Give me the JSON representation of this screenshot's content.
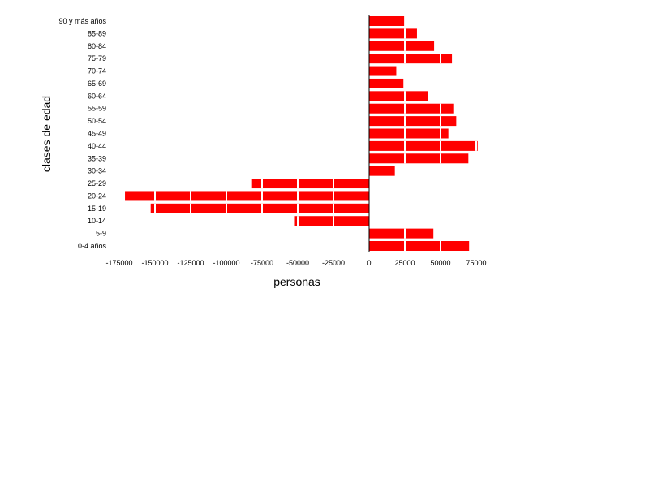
{
  "chart_data": {
    "type": "bar",
    "orientation": "horizontal",
    "categories": [
      "0-4 años",
      "5-9",
      "10-14",
      "15-19",
      "20-24",
      "25-29",
      "30-34",
      "35-39",
      "40-44",
      "45-49",
      "50-54",
      "55-59",
      "60-64",
      "65-69",
      "70-74",
      "75-79",
      "80-84",
      "85-89",
      "90 y más años"
    ],
    "values": [
      70000,
      45000,
      -52000,
      -153000,
      -171000,
      -82000,
      18000,
      69500,
      76000,
      55500,
      61000,
      59500,
      41000,
      24000,
      19000,
      58000,
      45500,
      33500,
      24500
    ],
    "xlabel": "personas",
    "ylabel": "clases de edad",
    "xlim": [
      -175000,
      75000
    ],
    "xticks": [
      -175000,
      -150000,
      -125000,
      -100000,
      -75000,
      -50000,
      -25000,
      0,
      25000,
      50000,
      75000
    ],
    "xtick_labels": [
      "-175000",
      "-150000",
      "-125000",
      "-100000",
      "-75000",
      "-50000",
      "-25000",
      "0",
      "25000",
      "50000",
      "75000"
    ],
    "bar_color": "#ff0000",
    "grid": false
  }
}
